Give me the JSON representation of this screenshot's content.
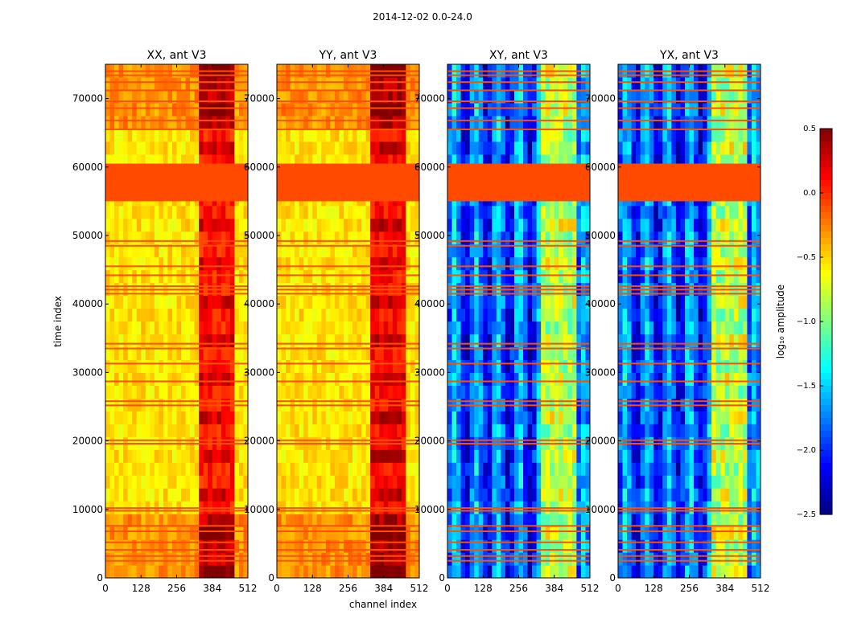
{
  "chart_data": {
    "type": "heatmap",
    "suptitle": "2014-12-02 0.0-24.0",
    "xlabel": "channel index",
    "ylabel": "time index",
    "xlim": [
      0,
      512
    ],
    "ylim": [
      0,
      75000
    ],
    "xticks": [
      0,
      128,
      256,
      384,
      512
    ],
    "yticks": [
      0,
      10000,
      20000,
      30000,
      40000,
      50000,
      60000,
      70000
    ],
    "colormap": "jet",
    "panels": [
      {
        "title": "XX, ant V3",
        "base_level": -0.55,
        "strong_band_level": 0.05
      },
      {
        "title": "YY, ant V3",
        "base_level": -0.55,
        "strong_band_level": 0.1
      },
      {
        "title": "XY, ant V3",
        "base_level": -1.85,
        "strong_band_level": -0.9
      },
      {
        "title": "YX, ant V3",
        "base_level": -1.85,
        "strong_band_level": -0.9
      }
    ],
    "flagged_time_range": [
      55000,
      60500
    ],
    "strong_channel_range": [
      330,
      470
    ],
    "horizontal_flag_lines": [
      2500,
      3200,
      4100,
      5200,
      6800,
      7600,
      9800,
      10200,
      19600,
      20100,
      25200,
      25800,
      28700,
      31300,
      33500,
      34200,
      41500,
      42100,
      42600,
      44200,
      45500,
      48500,
      49200,
      65500,
      66800,
      68600,
      69600,
      71200,
      72400,
      73400,
      74000
    ],
    "colorbar": {
      "label": "log₁₀ amplitude",
      "min": -2.5,
      "max": 0.5,
      "ticks": [
        "0.5",
        "0.0",
        "−0.5",
        "−1.0",
        "−1.5",
        "−2.0",
        "−2.5"
      ]
    }
  }
}
